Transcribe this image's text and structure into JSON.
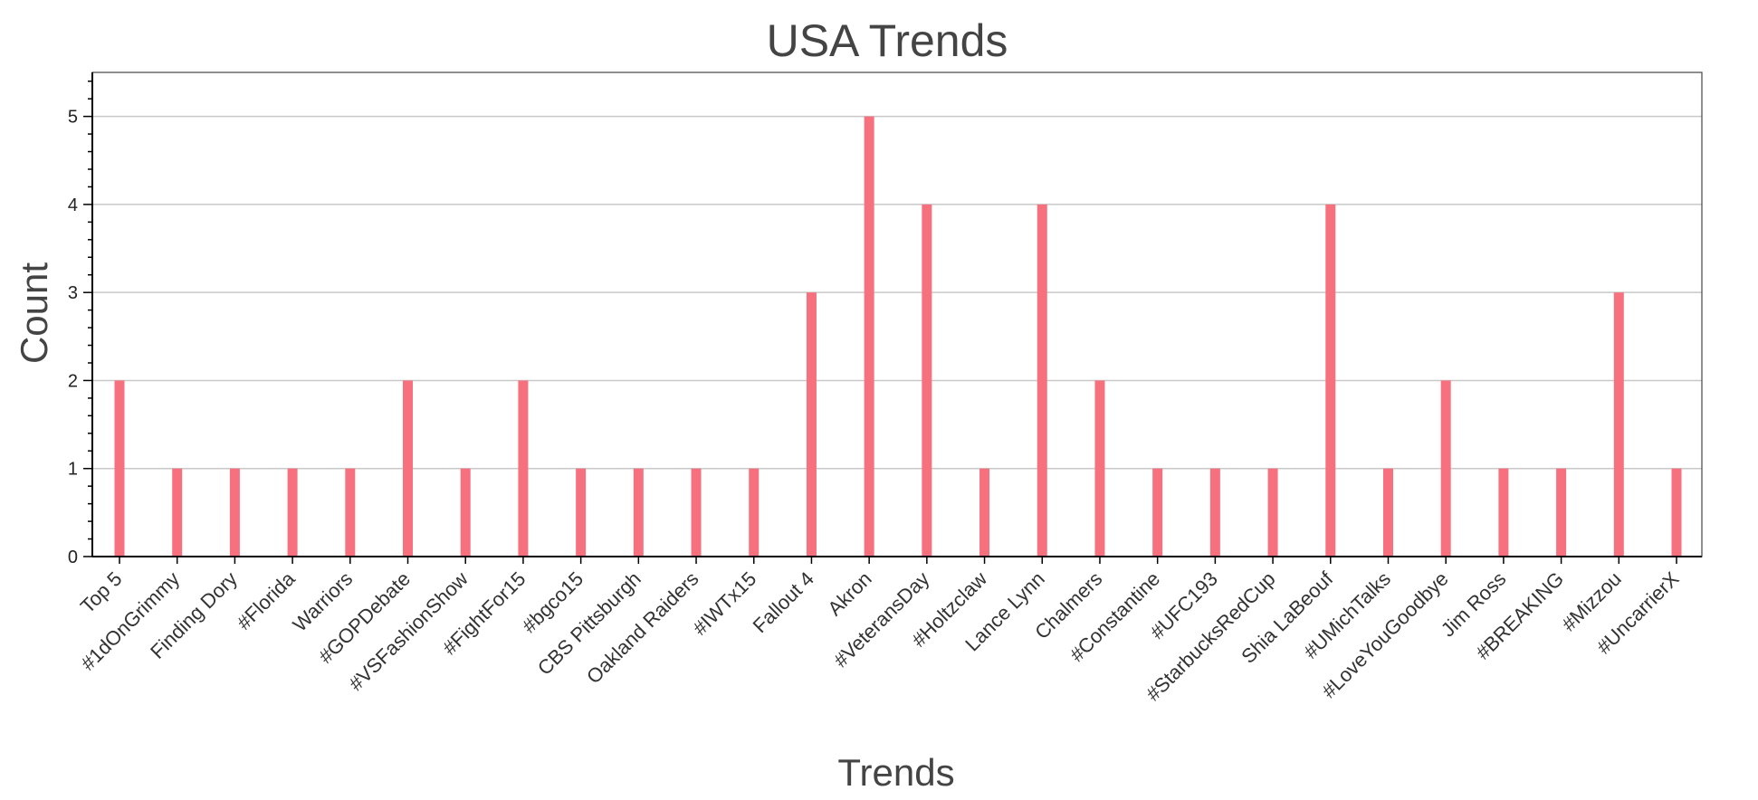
{
  "chart_data": {
    "type": "bar",
    "title": "USA Trends",
    "xlabel": "Trends",
    "ylabel": "Count",
    "ylim": [
      0,
      5.5
    ],
    "yticks": [
      0,
      1,
      2,
      3,
      4,
      5
    ],
    "grid": true,
    "bar_color": "#f7707e",
    "categories": [
      "Top 5",
      "#1dOnGrimmy",
      "Finding Dory",
      "#Florida",
      "Warriors",
      "#GOPDebate",
      "#VSFashionShow",
      "#FightFor15",
      "#bgco15",
      "CBS Pittsburgh",
      "Oakland Raiders",
      "#IWTx15",
      "Fallout 4",
      "Akron",
      "#VeteransDay",
      "#Holtzclaw",
      "Lance Lynn",
      "Chalmers",
      "#Constantine",
      "#UFC193",
      "#StarbucksRedCup",
      "Shia LaBeouf",
      "#UMichTalks",
      "#LoveYouGoodbye",
      "Jim Ross",
      "#BREAKING",
      "#Mizzou",
      "#UncarrierX"
    ],
    "values": [
      2,
      1,
      1,
      1,
      1,
      2,
      1,
      2,
      1,
      1,
      1,
      1,
      3,
      5,
      4,
      1,
      4,
      2,
      1,
      1,
      1,
      4,
      1,
      2,
      1,
      1,
      3,
      1
    ]
  }
}
